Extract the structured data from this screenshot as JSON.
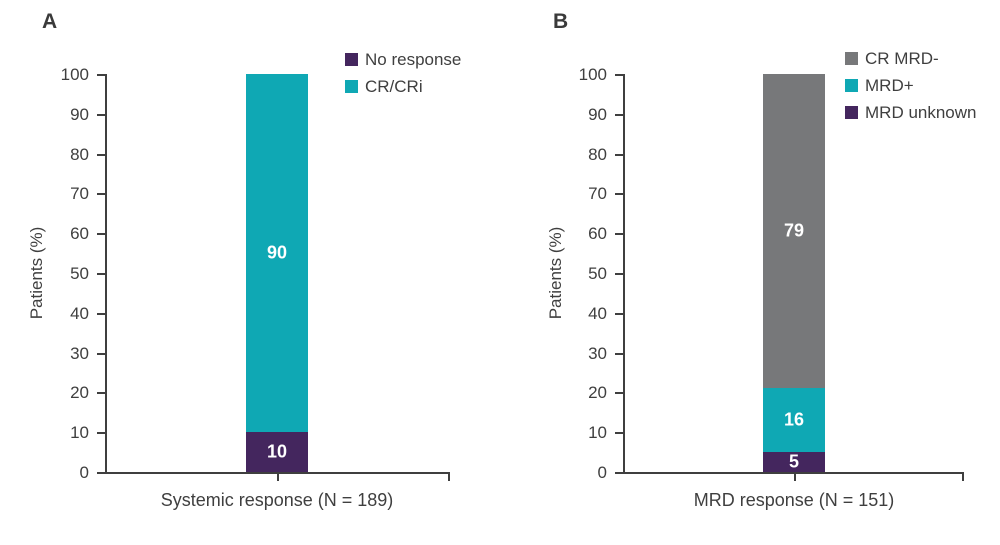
{
  "figure": {
    "background": "#ffffff",
    "axis_color": "#3f3f3f",
    "text_color": "#3f3f3f",
    "bar_label_color": "#ffffff"
  },
  "chart_data": [
    {
      "type": "bar",
      "panel": "A",
      "stacked": true,
      "grid": false,
      "legend_position": "top-right",
      "categories": [
        "Systemic response (N = 189)"
      ],
      "xlabel": "Systemic response (N = 189)",
      "ylabel": "Patients (%)",
      "ylim": [
        0,
        100
      ],
      "yticks": [
        0,
        10,
        20,
        30,
        40,
        50,
        60,
        70,
        80,
        90,
        100
      ],
      "series": [
        {
          "name": "No response",
          "values": [
            10
          ],
          "color": "#44265e",
          "data_label": "10"
        },
        {
          "name": "CR/CRi",
          "values": [
            90
          ],
          "color": "#0fa8b4",
          "data_label": "90"
        }
      ],
      "legend": [
        {
          "name": "No response",
          "color": "#44265e"
        },
        {
          "name": "CR/CRi",
          "color": "#0fa8b4"
        }
      ]
    },
    {
      "type": "bar",
      "panel": "B",
      "stacked": true,
      "grid": false,
      "legend_position": "top-right",
      "categories": [
        "MRD response (N = 151)"
      ],
      "xlabel": "MRD response (N = 151)",
      "ylabel": "Patients (%)",
      "ylim": [
        0,
        100
      ],
      "yticks": [
        0,
        10,
        20,
        30,
        40,
        50,
        60,
        70,
        80,
        90,
        100
      ],
      "series": [
        {
          "name": "MRD unknown",
          "values": [
            5
          ],
          "color": "#44265e",
          "data_label": "5"
        },
        {
          "name": "MRD+",
          "values": [
            16
          ],
          "color": "#0fa8b4",
          "data_label": "16"
        },
        {
          "name": "CR MRD-",
          "values": [
            79
          ],
          "color": "#77787a",
          "data_label": "79"
        }
      ],
      "legend": [
        {
          "name": "CR MRD-",
          "color": "#77787a"
        },
        {
          "name": "MRD+",
          "color": "#0fa8b4"
        },
        {
          "name": "MRD unknown",
          "color": "#44265e"
        }
      ]
    }
  ]
}
